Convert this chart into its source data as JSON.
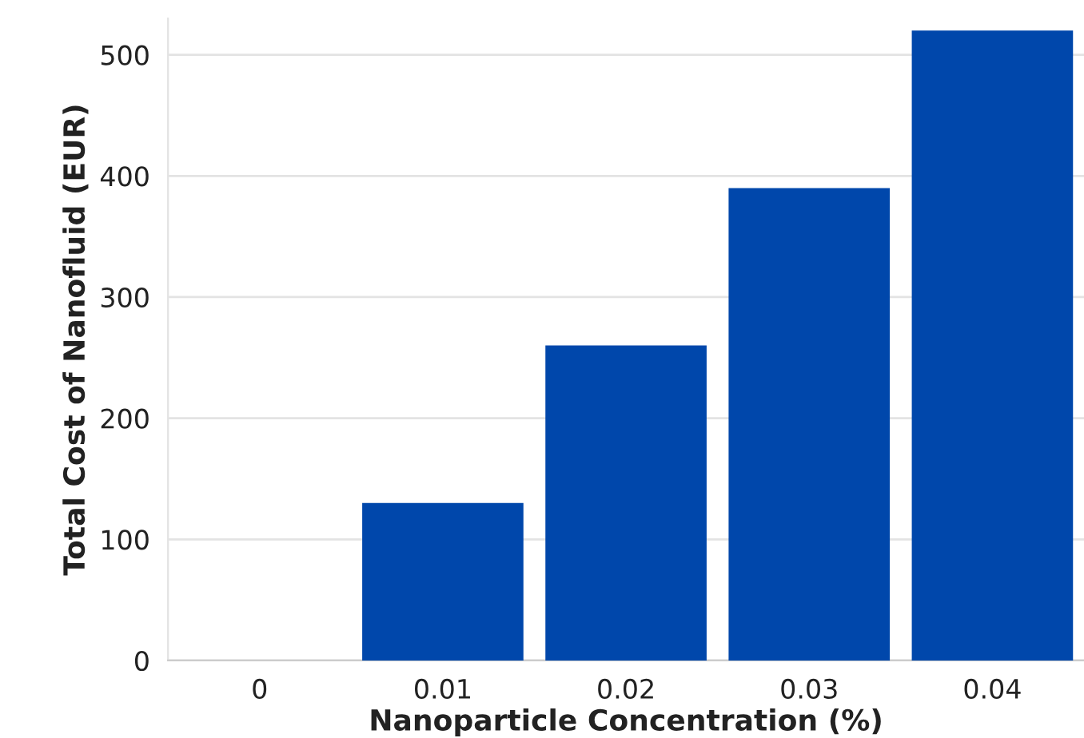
{
  "chart_data": {
    "type": "bar",
    "xlabel": "Nanoparticle Concentration (%)",
    "ylabel": "Total Cost of Nanofluid (EUR)",
    "categories": [
      "0",
      "0.01",
      "0.02",
      "0.03",
      "0.04"
    ],
    "values": [
      0,
      130,
      260,
      390,
      520
    ],
    "color": "#0047ab",
    "ylim": [
      0,
      530
    ],
    "yticks": [
      0,
      100,
      200,
      300,
      400,
      500
    ],
    "grid": "y"
  }
}
